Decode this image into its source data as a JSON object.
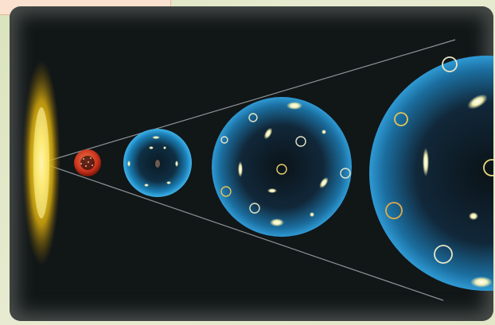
{
  "figure": {
    "description_visible_text": "",
    "stages": [
      {
        "name": "big-bang-flash",
        "color": "#f2d21b"
      },
      {
        "name": "early-universe-sphere",
        "color": "#d23a24"
      },
      {
        "name": "small-universe-sphere",
        "color": "#1f93cf"
      },
      {
        "name": "medium-universe-sphere",
        "color": "#1f7fb8"
      },
      {
        "name": "large-universe-sphere",
        "color": "#1a6c9e"
      }
    ],
    "colors": {
      "background": "#111617",
      "cone_lines": "#8d9296",
      "tab": "#fbe1cf"
    }
  }
}
